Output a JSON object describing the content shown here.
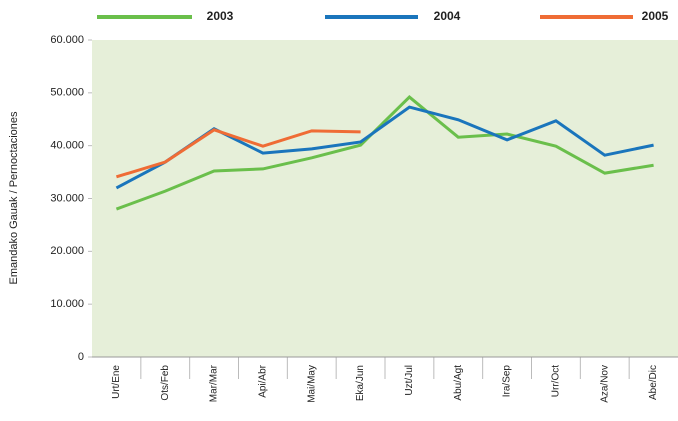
{
  "chart_data": {
    "type": "line",
    "y_label": "Emandako Gauak / Pernoctaciones",
    "categories": [
      "Urt/Ene",
      "Ots/Feb",
      "Mar/Mar",
      "Api/Abr",
      "Mai/May",
      "Eka/Jun",
      "Uzt/Jul",
      "Abu/Agt",
      "Ira/Sep",
      "Urr/Oct",
      "Aza/Nov",
      "Abe/Dic"
    ],
    "series": [
      {
        "name": "2003",
        "color": "#6abf4b",
        "values": [
          28000,
          31400,
          35200,
          35600,
          37700,
          40100,
          49200,
          41600,
          42200,
          39900,
          34800,
          36300
        ]
      },
      {
        "name": "2004",
        "color": "#1a75bc",
        "values": [
          32000,
          36900,
          43200,
          38600,
          39400,
          40700,
          47300,
          44900,
          41100,
          44700,
          38200,
          40100
        ]
      },
      {
        "name": "2005",
        "color": "#ef6c35",
        "values": [
          34100,
          36900,
          43000,
          39900,
          42800,
          42600,
          null,
          null,
          null,
          null,
          null,
          null
        ]
      }
    ],
    "ylim": [
      0,
      60000
    ],
    "yticks": [
      0,
      {
        "value": 10000,
        "label": "10.000"
      },
      {
        "value": 20000,
        "label": "20.000"
      },
      {
        "value": 30000,
        "label": "30.000"
      },
      {
        "value": 40000,
        "label": "40.000"
      },
      {
        "value": 50000,
        "label": "50.000"
      },
      {
        "value": 60000,
        "label": "60.000"
      }
    ],
    "plot_background": "#e6efd9"
  }
}
